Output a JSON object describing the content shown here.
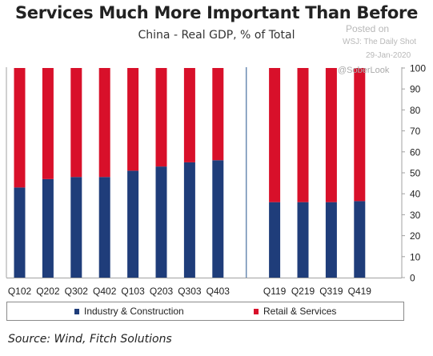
{
  "title": "Services Much More Important Than Before",
  "subtitle": "China - Real GDP, % of Total",
  "watermark": {
    "posted_on": "Posted on",
    "outlet": "WSJ: The Daily Shot",
    "date": "29-Jan-2020",
    "handle": "@SoberLook"
  },
  "source": "Source: Wind, Fitch Solutions",
  "colors": {
    "industry": "#1f3d7a",
    "retail": "#d8102a",
    "divider": "#6a8bb3",
    "axis": "#a0a0a0"
  },
  "chart_data": {
    "type": "bar",
    "stacked": true,
    "categories": [
      "Q102",
      "Q202",
      "Q302",
      "Q402",
      "Q103",
      "Q203",
      "Q303",
      "Q403",
      "",
      "Q119",
      "Q219",
      "Q319",
      "Q419"
    ],
    "series": [
      {
        "name": "Industry & Construction",
        "values": [
          43,
          47,
          48,
          48,
          51,
          53,
          55,
          56,
          null,
          36,
          36,
          36,
          36.5
        ]
      },
      {
        "name": "Retail & Services",
        "values": [
          57,
          53,
          52,
          52,
          49,
          47,
          45,
          44,
          null,
          64,
          64,
          64,
          63.5
        ]
      }
    ],
    "ylim": [
      0,
      100
    ],
    "yticks": [
      0,
      10,
      20,
      30,
      40,
      50,
      60,
      70,
      80,
      90,
      100
    ],
    "y_axis_side": "right",
    "legend": "bottom",
    "grid": false
  }
}
